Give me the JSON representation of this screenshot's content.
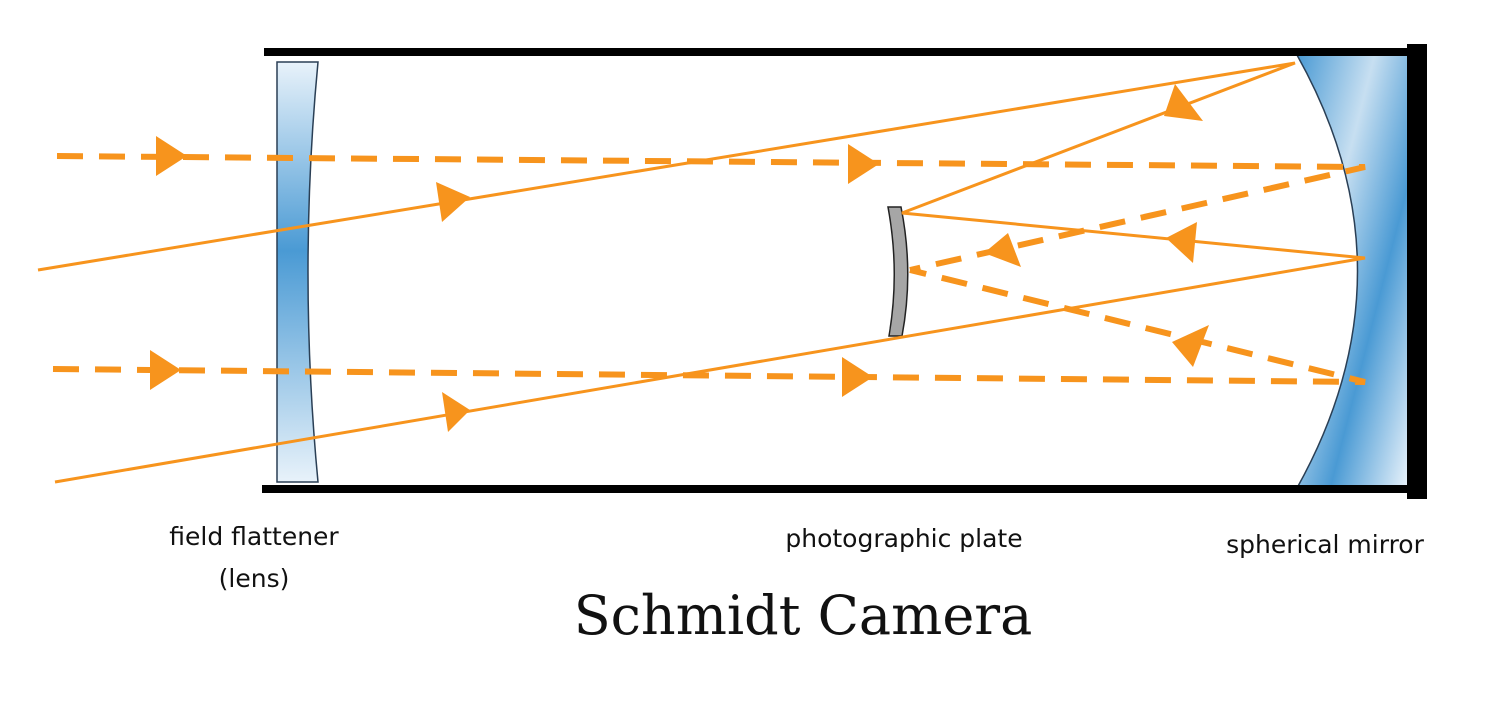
{
  "title": "Schmidt Camera",
  "labels": {
    "field_flattener_line1": "field flattener",
    "field_flattener_line2": "(lens)",
    "photographic_plate": "photographic plate",
    "spherical_mirror": "spherical mirror"
  },
  "colors": {
    "ray": "#f7941d",
    "tube": "#000000",
    "glass_light": "#e8f2fa",
    "glass_dark": "#4a9ad4",
    "plate_fill": "#a6a6a6"
  },
  "icons": {
    "ray_arrow": "triangle-arrow-icon"
  }
}
